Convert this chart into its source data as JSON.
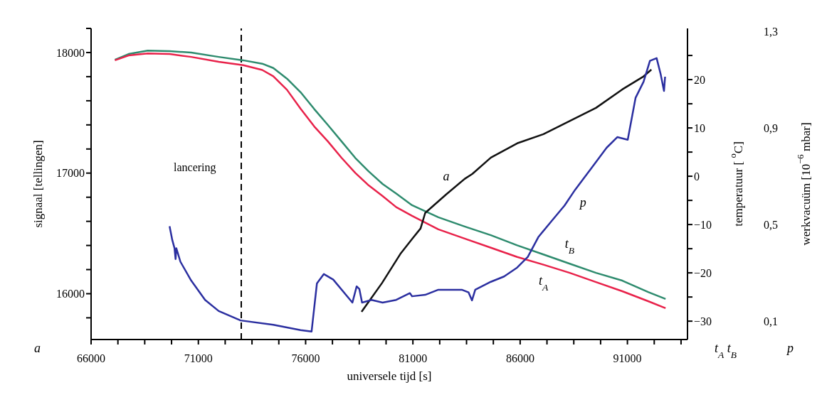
{
  "chart_data": {
    "type": "line",
    "xlabel": "universele tijd [s]",
    "ylabel": "signaal [tellingen]",
    "y2label": "temperatuur [ $^{o}$C]",
    "y3label": "werkvacuüm [10$^{−6}$ mbar]",
    "xlim": [
      66000,
      93800
    ],
    "xticks": [
      66000,
      {
        "value": 67250,
        "label": null
      },
      {
        "value": 68500,
        "label": null
      },
      {
        "value": 69750,
        "label": null
      },
      71000,
      {
        "value": 72250,
        "label": null
      },
      {
        "value": 73500,
        "label": null
      },
      {
        "value": 74750,
        "label": null
      },
      76000,
      {
        "value": 77250,
        "label": null
      },
      {
        "value": 78500,
        "label": null
      },
      {
        "value": 79750,
        "label": null
      },
      81000,
      {
        "value": 82250,
        "label": null
      },
      {
        "value": 83500,
        "label": null
      },
      {
        "value": 84750,
        "label": null
      },
      86000,
      {
        "value": 87250,
        "label": null
      },
      {
        "value": 88500,
        "label": null
      },
      {
        "value": 89750,
        "label": null
      },
      91000,
      {
        "value": 92250,
        "label": null
      },
      {
        "value": 93500,
        "label": null
      }
    ],
    "ylim": [
      15620,
      18200
    ],
    "yticks": [
      {
        "value": 15800,
        "label": null
      },
      16000,
      {
        "value": 16200,
        "label": null
      },
      {
        "value": 16400,
        "label": null
      },
      {
        "value": 16600,
        "label": null
      },
      {
        "value": 16800,
        "label": null
      },
      17000,
      {
        "value": 17200,
        "label": null
      },
      {
        "value": 17400,
        "label": null
      },
      {
        "value": 17600,
        "label": null
      },
      {
        "value": 17800,
        "label": null
      },
      18000,
      {
        "value": 18200,
        "label": null
      }
    ],
    "y2lim": [
      -33.8,
      30.6
    ],
    "y2ticks": [
      {
        "value": -30,
        "label": "−30"
      },
      {
        "value": -25,
        "label": null
      },
      {
        "value": -20,
        "label": "−20"
      },
      {
        "value": -15,
        "label": null
      },
      {
        "value": -10,
        "label": "−10"
      },
      {
        "value": -5,
        "label": null
      },
      0,
      {
        "value": 5,
        "label": null
      },
      10,
      {
        "value": 15,
        "label": null
      },
      20,
      {
        "value": 25,
        "label": null
      }
    ],
    "y3lim": [
      0.024,
      1.312
    ],
    "y3ticks": [
      {
        "value": 0.1,
        "label": "0,1"
      },
      {
        "value": 0.5,
        "label": "0,5"
      },
      {
        "value": 0.9,
        "label": "0,9"
      },
      {
        "value": 1.3,
        "label": "1,3"
      }
    ],
    "grid": false,
    "legend": false,
    "marker": "none",
    "line_style": "solid",
    "ref_lines": [
      {
        "axis": "x",
        "value": 73000,
        "label": "lancering",
        "color": "#000000",
        "line_style": "dashed"
      }
    ],
    "annotations": [
      "a",
      "t$_{A}$ t$_{B}$",
      "p"
    ],
    "series": [
      {
        "name": "t$_{B}$",
        "color": "#2e8b6e",
        "axis": "y2",
        "x": [
          67109,
          67748,
          68638,
          69658,
          70667,
          71948,
          73093,
          73977,
          74493,
          75129,
          75764,
          76403,
          77039,
          77677,
          78313,
          78942,
          79587,
          80223,
          80961,
          82186,
          83411,
          84635,
          85860,
          87085,
          88309,
          89534,
          90759,
          91984,
          92778
        ],
        "values": [
          24.1,
          25.3,
          26.0,
          25.9,
          25.6,
          24.7,
          24.0,
          23.3,
          22.4,
          20.2,
          17.4,
          13.9,
          10.6,
          7.2,
          3.8,
          1.0,
          -1.6,
          -3.6,
          -6.0,
          -8.5,
          -10.4,
          -12.2,
          -14.3,
          -16.2,
          -18.1,
          -20.0,
          -21.6,
          -24.0,
          -25.4
        ]
      },
      {
        "name": "t$_{A}$",
        "color": "#e8224a",
        "axis": "y2",
        "x": [
          67109,
          67748,
          68638,
          69658,
          70667,
          71948,
          73093,
          73977,
          74493,
          75129,
          75764,
          76403,
          77039,
          77677,
          78313,
          78942,
          79587,
          80223,
          80961,
          82186,
          83411,
          84635,
          85860,
          87085,
          88309,
          89534,
          90759,
          91984,
          92778
        ],
        "values": [
          24.0,
          25.0,
          25.4,
          25.3,
          24.7,
          23.7,
          23.0,
          22.0,
          20.7,
          17.9,
          14.0,
          10.3,
          7.2,
          3.8,
          0.7,
          -1.9,
          -4.1,
          -6.4,
          -8.2,
          -11.0,
          -12.9,
          -14.8,
          -16.7,
          -18.3,
          -20.0,
          -21.9,
          -23.8,
          -25.9,
          -27.3
        ]
      },
      {
        "name": "a",
        "color": "#111111",
        "x": [
          78607,
          79563,
          80440,
          80961,
          81358,
          81574,
          82550,
          83411,
          83775,
          84635,
          85860,
          87085,
          88309,
          89534,
          90759,
          91752,
          92116
        ],
        "values": [
          15850,
          16089,
          16336,
          16453,
          16541,
          16670,
          16823,
          16952,
          16994,
          17129,
          17247,
          17323,
          17432,
          17541,
          17694,
          17802,
          17858
        ]
      },
      {
        "name": "p",
        "color": "#2b2fa0",
        "axis": "y3",
        "x": [
          69658,
          69784,
          69886,
          69939,
          69972,
          70164,
          70667,
          71313,
          71948,
          72968,
          74493,
          75764,
          76277,
          76526,
          76850,
          77287,
          78181,
          78379,
          78505,
          78631,
          79075,
          79588,
          80223,
          80862,
          80961,
          81574,
          82186,
          83278,
          83596,
          83755,
          83907,
          84635,
          85251,
          85860,
          86357,
          86847,
          87450,
          88072,
          88562,
          89302,
          90030,
          90527,
          91014,
          91381,
          91752,
          92050,
          92361,
          92546,
          92705,
          92755
        ],
        "values": [
          0.493,
          0.436,
          0.403,
          0.357,
          0.402,
          0.346,
          0.268,
          0.188,
          0.142,
          0.103,
          0.085,
          0.063,
          0.057,
          0.256,
          0.295,
          0.272,
          0.177,
          0.244,
          0.233,
          0.177,
          0.188,
          0.177,
          0.188,
          0.216,
          0.203,
          0.209,
          0.23,
          0.23,
          0.219,
          0.186,
          0.23,
          0.263,
          0.285,
          0.322,
          0.366,
          0.448,
          0.513,
          0.579,
          0.644,
          0.731,
          0.818,
          0.862,
          0.851,
          1.025,
          1.091,
          1.178,
          1.189,
          1.124,
          1.053,
          1.112
        ]
      }
    ]
  }
}
